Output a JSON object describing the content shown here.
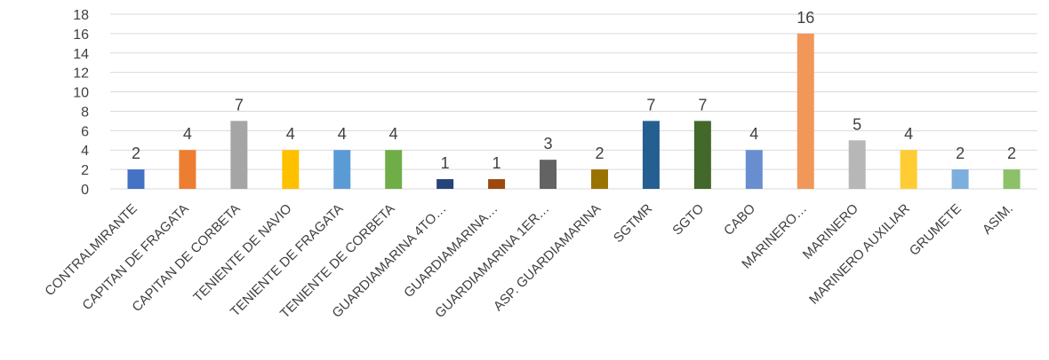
{
  "chart_data": {
    "type": "bar",
    "title": "",
    "xlabel": "",
    "ylabel": "",
    "ylim": [
      0,
      18
    ],
    "ytick_step": 2,
    "yticks": [
      "0",
      "2",
      "4",
      "6",
      "8",
      "10",
      "12",
      "14",
      "16",
      "18"
    ],
    "grid": true,
    "legend": "none",
    "categories": [
      "CONTRALMIRANTE",
      "CAPITAN DE FRAGATA",
      "CAPITAN DE CORBETA",
      "TENIENTE DE NAVIO",
      "TENIENTE DE FRAGATA",
      "TENIENTE DE CORBETA",
      "GUARDIAMARINA 4TO…",
      "GUARDIAMARINA…",
      "GUARDIAMARINA 1ER…",
      "ASP. GUARDIAMARINA",
      "SGTMR",
      "SGTO",
      "CABO",
      "MARINERO…",
      "MARINERO",
      "MARINERO AUXILIAR",
      "GRUMETE",
      "ASIM."
    ],
    "values": [
      2,
      4,
      7,
      4,
      4,
      4,
      1,
      1,
      3,
      2,
      7,
      7,
      4,
      16,
      5,
      4,
      2,
      2
    ],
    "colors": [
      "#4472c4",
      "#ed7d31",
      "#a5a5a5",
      "#ffc000",
      "#5b9bd5",
      "#70ad47",
      "#264478",
      "#9e480e",
      "#636363",
      "#997300",
      "#255e91",
      "#43682b",
      "#698ed0",
      "#f1975a",
      "#b7b7b7",
      "#ffcd33",
      "#7cafdd",
      "#8cc168"
    ]
  }
}
